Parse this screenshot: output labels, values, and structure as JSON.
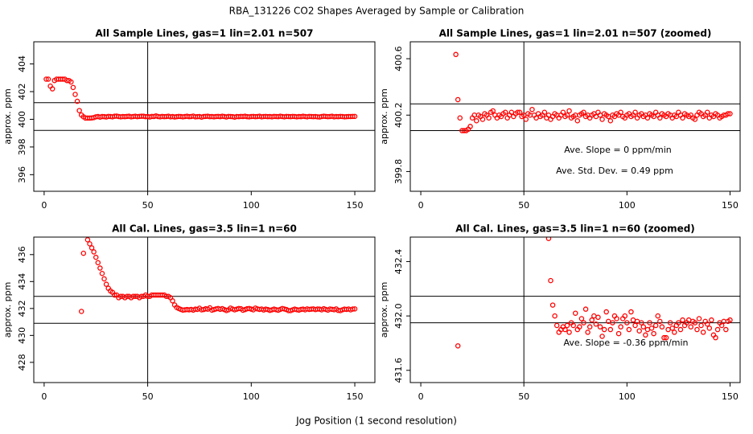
{
  "title": "RBA_131226  CO2 Shapes Averaged by Sample or Calibration",
  "xlabel": "Jog Position (1 second resolution)",
  "chart_data": [
    {
      "type": "scatter",
      "title": "All Sample Lines, gas=1 lin=2.01 n=507",
      "ylabel": "approx. ppm",
      "color": "#ff0000",
      "xlim": [
        -5,
        159.7
      ],
      "ylim": [
        394.8,
        405.6
      ],
      "xticks": [
        0,
        50,
        100,
        150
      ],
      "yticks": [
        396,
        398,
        400,
        402,
        404
      ],
      "hlines": [
        401.2,
        399.2
      ],
      "vline": 50,
      "annotations": [],
      "x": [
        1,
        2,
        3,
        4,
        5,
        6,
        7,
        8,
        9,
        10,
        11,
        12,
        13,
        14,
        15,
        16,
        17,
        18,
        19,
        20,
        21,
        22,
        23,
        24,
        25,
        26,
        27,
        28,
        29,
        30,
        31,
        32,
        33,
        34,
        35,
        36,
        37,
        38,
        39,
        40,
        41,
        42,
        43,
        44,
        45,
        46,
        47,
        48,
        49,
        50,
        51,
        52,
        53,
        54,
        55,
        56,
        57,
        58,
        59,
        60,
        61,
        62,
        63,
        64,
        65,
        66,
        67,
        68,
        69,
        70,
        71,
        72,
        73,
        74,
        75,
        76,
        77,
        78,
        79,
        80,
        81,
        82,
        83,
        84,
        85,
        86,
        87,
        88,
        89,
        90,
        91,
        92,
        93,
        94,
        95,
        96,
        97,
        98,
        99,
        100,
        101,
        102,
        103,
        104,
        105,
        106,
        107,
        108,
        109,
        110,
        111,
        112,
        113,
        114,
        115,
        116,
        117,
        118,
        119,
        120,
        121,
        122,
        123,
        124,
        125,
        126,
        127,
        128,
        129,
        130,
        131,
        132,
        133,
        134,
        135,
        136,
        137,
        138,
        139,
        140,
        141,
        142,
        143,
        144,
        145,
        146,
        147,
        148,
        149,
        150
      ],
      "values": [
        402.9,
        402.9,
        402.4,
        402.2,
        402.8,
        402.9,
        402.9,
        402.9,
        402.9,
        402.9,
        402.8,
        402.8,
        402.7,
        402.3,
        401.8,
        401.3,
        400.63,
        400.31,
        400.18,
        400.09,
        400.09,
        400.09,
        400.1,
        400.12,
        400.18,
        400.2,
        400.16,
        400.2,
        400.19,
        400.17,
        400.21,
        400.2,
        400.18,
        400.22,
        400.23,
        400.2,
        400.18,
        400.2,
        400.19,
        400.21,
        400.22,
        400.18,
        400.2,
        400.22,
        400.19,
        400.21,
        400.22,
        400.22,
        400.19,
        400.2,
        400.17,
        400.21,
        400.2,
        400.24,
        400.2,
        400.18,
        400.21,
        400.19,
        400.2,
        400.22,
        400.18,
        400.2,
        400.17,
        400.19,
        400.21,
        400.2,
        400.18,
        400.2,
        400.22,
        400.19,
        400.2,
        400.23,
        400.18,
        400.19,
        400.2,
        400.16,
        400.2,
        400.21,
        400.22,
        400.19,
        400.2,
        400.18,
        400.2,
        400.21,
        400.19,
        400.22,
        400.2,
        400.17,
        400.21,
        400.2,
        400.19,
        400.16,
        400.2,
        400.19,
        400.21,
        400.2,
        400.22,
        400.19,
        400.18,
        400.2,
        400.21,
        400.19,
        400.2,
        400.22,
        400.18,
        400.2,
        400.21,
        400.19,
        400.2,
        400.18,
        400.21,
        400.2,
        400.19,
        400.22,
        400.2,
        400.18,
        400.21,
        400.2,
        400.19,
        400.21,
        400.2,
        400.18,
        400.2,
        400.19,
        400.22,
        400.2,
        400.18,
        400.21,
        400.2,
        400.19,
        400.2,
        400.18,
        400.17,
        400.2,
        400.22,
        400.21,
        400.19,
        400.2,
        400.22,
        400.18,
        400.2,
        400.19,
        400.21,
        400.2,
        400.18,
        400.19,
        400.2,
        400.2,
        400.21,
        400.21
      ]
    },
    {
      "type": "scatter",
      "title": "All Sample Lines, gas=1 lin=2.01 n=507 (zoomed)",
      "ylabel": "approx. ppm",
      "color": "#ff0000",
      "xlim": [
        -5.1,
        154.9
      ],
      "ylim": [
        399.66,
        400.72
      ],
      "xticks": [
        0,
        50,
        100,
        150
      ],
      "yticks": [
        399.8,
        400.2,
        400.6
      ],
      "hlines": [
        400.28,
        400.09
      ],
      "vline": 50,
      "annotations": [
        "Ave. Slope =  0  ppm/min",
        "Ave. Std. Dev. =  0.49  ppm"
      ],
      "x": [
        17,
        18,
        19,
        20,
        21,
        22,
        23,
        24,
        25,
        26,
        27,
        28,
        29,
        30,
        31,
        32,
        33,
        34,
        35,
        36,
        37,
        38,
        39,
        40,
        41,
        42,
        43,
        44,
        45,
        46,
        47,
        48,
        49,
        50,
        51,
        52,
        53,
        54,
        55,
        56,
        57,
        58,
        59,
        60,
        61,
        62,
        63,
        64,
        65,
        66,
        67,
        68,
        69,
        70,
        71,
        72,
        73,
        74,
        75,
        76,
        77,
        78,
        79,
        80,
        81,
        82,
        83,
        84,
        85,
        86,
        87,
        88,
        89,
        90,
        91,
        92,
        93,
        94,
        95,
        96,
        97,
        98,
        99,
        100,
        101,
        102,
        103,
        104,
        105,
        106,
        107,
        108,
        109,
        110,
        111,
        112,
        113,
        114,
        115,
        116,
        117,
        118,
        119,
        120,
        121,
        122,
        123,
        124,
        125,
        126,
        127,
        128,
        129,
        130,
        131,
        132,
        133,
        134,
        135,
        136,
        137,
        138,
        139,
        140,
        141,
        142,
        143,
        144,
        145,
        146,
        147,
        148,
        149,
        150
      ],
      "values": [
        400.63,
        400.31,
        400.18,
        400.09,
        400.09,
        400.09,
        400.1,
        400.12,
        400.18,
        400.2,
        400.16,
        400.2,
        400.19,
        400.17,
        400.21,
        400.2,
        400.18,
        400.22,
        400.23,
        400.2,
        400.18,
        400.2,
        400.19,
        400.21,
        400.22,
        400.18,
        400.2,
        400.22,
        400.19,
        400.21,
        400.22,
        400.22,
        400.19,
        400.2,
        400.17,
        400.21,
        400.2,
        400.24,
        400.2,
        400.18,
        400.21,
        400.19,
        400.2,
        400.22,
        400.18,
        400.2,
        400.17,
        400.19,
        400.21,
        400.2,
        400.18,
        400.2,
        400.22,
        400.19,
        400.2,
        400.23,
        400.18,
        400.19,
        400.2,
        400.16,
        400.2,
        400.21,
        400.22,
        400.19,
        400.2,
        400.18,
        400.2,
        400.21,
        400.19,
        400.22,
        400.2,
        400.17,
        400.21,
        400.2,
        400.19,
        400.16,
        400.2,
        400.19,
        400.21,
        400.2,
        400.22,
        400.19,
        400.18,
        400.2,
        400.21,
        400.19,
        400.2,
        400.22,
        400.18,
        400.2,
        400.21,
        400.19,
        400.2,
        400.18,
        400.21,
        400.2,
        400.19,
        400.22,
        400.2,
        400.18,
        400.21,
        400.2,
        400.19,
        400.21,
        400.2,
        400.18,
        400.2,
        400.19,
        400.22,
        400.2,
        400.18,
        400.21,
        400.2,
        400.19,
        400.2,
        400.18,
        400.17,
        400.2,
        400.22,
        400.21,
        400.19,
        400.2,
        400.22,
        400.18,
        400.2,
        400.19,
        400.21,
        400.2,
        400.18,
        400.19,
        400.2,
        400.2,
        400.21,
        400.21
      ]
    },
    {
      "type": "scatter",
      "title": "All Cal. Lines, gas=3.5 lin=1 n=60",
      "ylabel": "approx. ppm",
      "color": "#ff0000",
      "xlim": [
        -5,
        159.7
      ],
      "ylim": [
        426.5,
        437.3
      ],
      "xticks": [
        0,
        50,
        100,
        150
      ],
      "yticks": [
        428,
        430,
        432,
        434,
        436
      ],
      "hlines": [
        432.9,
        430.9
      ],
      "vline": 50,
      "annotations": [],
      "x": [
        18,
        19,
        21,
        22,
        23,
        24,
        25,
        26,
        27,
        28,
        29,
        30,
        31,
        32,
        33,
        34,
        35,
        36,
        37,
        38,
        39,
        40,
        41,
        42,
        43,
        44,
        45,
        46,
        47,
        48,
        49,
        50,
        51,
        52,
        53,
        54,
        55,
        56,
        57,
        58,
        59,
        60,
        61,
        62,
        63,
        64,
        65,
        66,
        67,
        68,
        69,
        70,
        71,
        72,
        73,
        74,
        75,
        76,
        77,
        78,
        79,
        80,
        81,
        82,
        83,
        84,
        85,
        86,
        87,
        88,
        89,
        90,
        91,
        92,
        93,
        94,
        95,
        96,
        97,
        98,
        99,
        100,
        101,
        102,
        103,
        104,
        105,
        106,
        107,
        108,
        109,
        110,
        111,
        112,
        113,
        114,
        115,
        116,
        117,
        118,
        119,
        120,
        121,
        122,
        123,
        124,
        125,
        126,
        127,
        128,
        129,
        130,
        131,
        132,
        133,
        134,
        135,
        136,
        137,
        138,
        139,
        140,
        141,
        142,
        143,
        144,
        145,
        146,
        147,
        148,
        149,
        150
      ],
      "values": [
        431.78,
        436.1,
        437.1,
        436.8,
        436.5,
        436.2,
        435.8,
        435.4,
        435.0,
        434.6,
        434.2,
        433.8,
        433.5,
        433.3,
        433.2,
        433.0,
        433.0,
        432.8,
        432.9,
        432.9,
        432.8,
        432.9,
        432.9,
        432.8,
        432.9,
        432.9,
        432.9,
        432.8,
        432.9,
        432.9,
        433.0,
        432.9,
        432.9,
        433.0,
        433.0,
        433.0,
        433.0,
        433.0,
        433.0,
        433.0,
        432.9,
        432.9,
        432.8,
        432.57,
        432.26,
        432.08,
        432.0,
        431.93,
        431.88,
        431.9,
        431.92,
        431.9,
        431.93,
        431.88,
        431.95,
        431.93,
        432.02,
        431.9,
        431.92,
        431.98,
        431.95,
        432.05,
        431.88,
        431.92,
        431.97,
        432.0,
        431.94,
        431.99,
        431.92,
        431.85,
        431.9,
        432.03,
        431.96,
        431.9,
        431.95,
        432.0,
        431.98,
        431.87,
        431.92,
        431.98,
        432.0,
        431.95,
        431.9,
        432.03,
        431.97,
        431.93,
        431.96,
        431.89,
        431.95,
        431.92,
        431.86,
        431.9,
        431.95,
        431.91,
        431.87,
        431.93,
        432.0,
        431.96,
        431.92,
        431.84,
        431.84,
        431.9,
        431.95,
        431.91,
        431.88,
        431.93,
        431.95,
        431.9,
        431.97,
        431.93,
        431.95,
        431.97,
        431.92,
        431.96,
        431.95,
        431.9,
        431.98,
        431.93,
        431.88,
        431.96,
        431.94,
        431.91,
        431.97,
        431.86,
        431.84,
        431.9,
        431.95,
        431.93,
        431.96,
        431.9,
        431.96,
        431.97
      ]
    },
    {
      "type": "scatter",
      "title": "All Cal. Lines, gas=3.5 lin=1 n=60 (zoomed)",
      "ylabel": "approx. ppm",
      "color": "#ff0000",
      "xlim": [
        -5.1,
        154.9
      ],
      "ylim": [
        431.51,
        432.58
      ],
      "xticks": [
        0,
        50,
        100,
        150
      ],
      "yticks": [
        431.6,
        {
          "value": 432,
          "label": "432.0"
        },
        432.4
      ],
      "hlines": [
        432.145,
        431.95
      ],
      "vline": 50,
      "annotations": [
        "Ave. Slope =  -0.36  ppm/min"
      ],
      "x": [
        18,
        62,
        63,
        64,
        65,
        66,
        67,
        68,
        69,
        70,
        71,
        72,
        73,
        74,
        75,
        76,
        77,
        78,
        79,
        80,
        81,
        82,
        83,
        84,
        85,
        86,
        87,
        88,
        89,
        90,
        91,
        92,
        93,
        94,
        95,
        96,
        97,
        98,
        99,
        100,
        101,
        102,
        103,
        104,
        105,
        106,
        107,
        108,
        109,
        110,
        111,
        112,
        113,
        114,
        115,
        116,
        117,
        118,
        119,
        120,
        121,
        122,
        123,
        124,
        125,
        126,
        127,
        128,
        129,
        130,
        131,
        132,
        133,
        134,
        135,
        136,
        137,
        138,
        139,
        140,
        141,
        142,
        143,
        144,
        145,
        146,
        147,
        148,
        149,
        150
      ],
      "values": [
        431.78,
        432.57,
        432.26,
        432.08,
        432.0,
        431.93,
        431.88,
        431.9,
        431.92,
        431.9,
        431.93,
        431.88,
        431.95,
        431.93,
        432.02,
        431.9,
        431.92,
        431.98,
        431.95,
        432.05,
        431.88,
        431.92,
        431.97,
        432.0,
        431.94,
        431.99,
        431.92,
        431.85,
        431.9,
        432.03,
        431.96,
        431.9,
        431.95,
        432.0,
        431.98,
        431.87,
        431.92,
        431.98,
        432.0,
        431.95,
        431.9,
        432.03,
        431.97,
        431.93,
        431.96,
        431.89,
        431.95,
        431.92,
        431.86,
        431.9,
        431.95,
        431.91,
        431.87,
        431.93,
        432.0,
        431.96,
        431.92,
        431.84,
        431.84,
        431.9,
        431.95,
        431.91,
        431.88,
        431.93,
        431.95,
        431.9,
        431.97,
        431.93,
        431.95,
        431.97,
        431.92,
        431.96,
        431.95,
        431.9,
        431.98,
        431.93,
        431.88,
        431.96,
        431.94,
        431.91,
        431.97,
        431.86,
        431.84,
        431.9,
        431.95,
        431.93,
        431.96,
        431.9,
        431.96,
        431.97
      ]
    }
  ]
}
